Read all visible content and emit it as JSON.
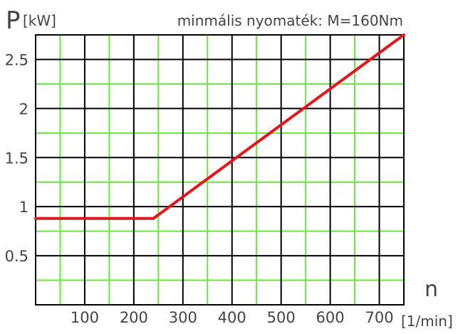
{
  "chart_data": {
    "type": "line",
    "title": "minmális  nyomaték: M=160Nm",
    "ylabel_main": "P",
    "ylabel_unit": "[kW]",
    "xlabel_main": "n",
    "xlabel_unit": "[1/min]",
    "xlim": [
      0,
      750
    ],
    "ylim": [
      0,
      2.75
    ],
    "x_ticks": [
      "100",
      "200",
      "300",
      "400",
      "500",
      "600",
      "700"
    ],
    "x_tick_values": [
      100,
      200,
      300,
      400,
      500,
      600,
      700
    ],
    "y_ticks": [
      "0.5",
      "1",
      "1.5",
      "2",
      "2.5"
    ],
    "y_tick_values": [
      0.5,
      1,
      1.5,
      2,
      2.5
    ],
    "grid": true,
    "series": [
      {
        "x": [
          0,
          240,
          750
        ],
        "y": [
          0.88,
          0.88,
          2.75
        ]
      }
    ],
    "colors": {
      "line": "#e8141b",
      "major_grid": "#000000",
      "minor_grid": "#66e83a",
      "text": "#444444"
    }
  }
}
